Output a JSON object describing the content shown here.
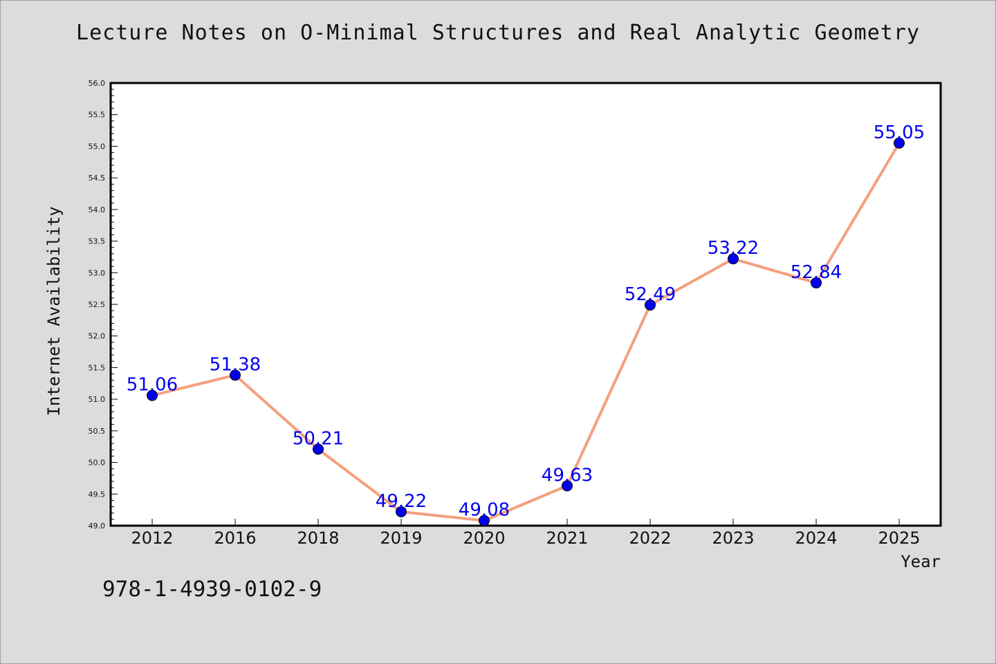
{
  "title": "Lecture Notes on O-Minimal Structures and Real Analytic Geometry",
  "isbn": "978-1-4939-0102-9",
  "colors": {
    "background": "#dcdcdc",
    "line": "#f4a07c",
    "marker": "#0000ee",
    "label": "#0000ee"
  },
  "chart_data": {
    "type": "line",
    "title": "Lecture Notes on O-Minimal Structures and Real Analytic Geometry",
    "xlabel": "Year",
    "ylabel": "Internet Availability",
    "categories": [
      "2012",
      "2016",
      "2018",
      "2019",
      "2020",
      "2021",
      "2022",
      "2023",
      "2024",
      "2025"
    ],
    "values": [
      51.06,
      51.38,
      50.21,
      49.22,
      49.08,
      49.63,
      52.49,
      53.22,
      52.84,
      55.05
    ],
    "data_labels": [
      "51.06",
      "51.38",
      "50.21",
      "49.22",
      "49.08",
      "49.63",
      "52.49",
      "53.22",
      "52.84",
      "55.05"
    ],
    "ylim": [
      49.0,
      56.0
    ],
    "yticks": [
      "49.0",
      "49.5",
      "50.0",
      "50.5",
      "51.0",
      "51.5",
      "52.0",
      "52.5",
      "53.0",
      "53.5",
      "54.0",
      "54.5",
      "55.0",
      "55.5",
      "56.0"
    ],
    "grid": false,
    "legend": "none"
  }
}
